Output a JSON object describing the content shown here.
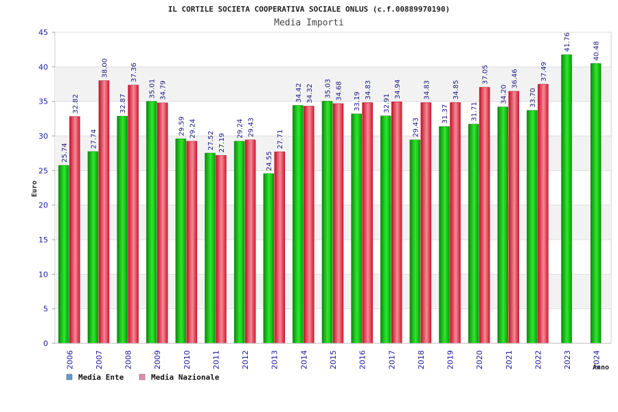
{
  "chart_data": {
    "type": "bar",
    "title": "IL CORTILE SOCIETA COOPERATIVA SOCIALE ONLUS (c.f.00889970190)",
    "subtitle": "Media Importi",
    "ylabel": "Euro",
    "xlabel": "Anno",
    "ylim": [
      0,
      45
    ],
    "yticks": [
      "0",
      "5",
      "10",
      "15",
      "20",
      "25",
      "30",
      "35",
      "40",
      "45"
    ],
    "categories": [
      "2006",
      "2007",
      "2008",
      "2009",
      "2010",
      "2011",
      "2012",
      "2013",
      "2014",
      "2015",
      "2016",
      "2017",
      "2018",
      "2019",
      "2020",
      "2021",
      "2022",
      "2023",
      "2024"
    ],
    "series": [
      {
        "name": "Media Ente",
        "color": "#1fb81f",
        "values": [
          25.74,
          27.74,
          32.87,
          35.01,
          29.59,
          27.52,
          29.24,
          24.55,
          34.42,
          35.03,
          33.19,
          32.91,
          29.43,
          31.37,
          31.71,
          34.2,
          33.7,
          41.76,
          40.48
        ],
        "labels": [
          "25.74",
          "27.74",
          "32.87",
          "35.01",
          "29.59",
          "27.52",
          "29.24",
          "24.55",
          "34.42",
          "35.03",
          "33.19",
          "32.91",
          "29.43",
          "31.37",
          "31.71",
          "34.20",
          "33.70",
          "41.76",
          "40.48"
        ]
      },
      {
        "name": "Media Nazionale",
        "color": "#e0303a",
        "values": [
          32.82,
          38.0,
          37.36,
          34.79,
          29.24,
          27.19,
          29.43,
          27.71,
          34.32,
          34.68,
          34.83,
          34.94,
          34.83,
          34.85,
          37.05,
          36.46,
          37.49,
          null,
          null
        ],
        "labels": [
          "32.82",
          "38.00",
          "37.36",
          "34.79",
          "29.24",
          "27.19",
          "29.43",
          "27.71",
          "34.32",
          "34.68",
          "34.83",
          "34.94",
          "34.83",
          "34.85",
          "37.05",
          "36.46",
          "37.49",
          null,
          null
        ]
      }
    ],
    "legend": [
      {
        "name": "Media Ente",
        "color": "#5b9bd5"
      },
      {
        "name": "Media Nazionale",
        "color": "#e68bb0"
      }
    ]
  }
}
